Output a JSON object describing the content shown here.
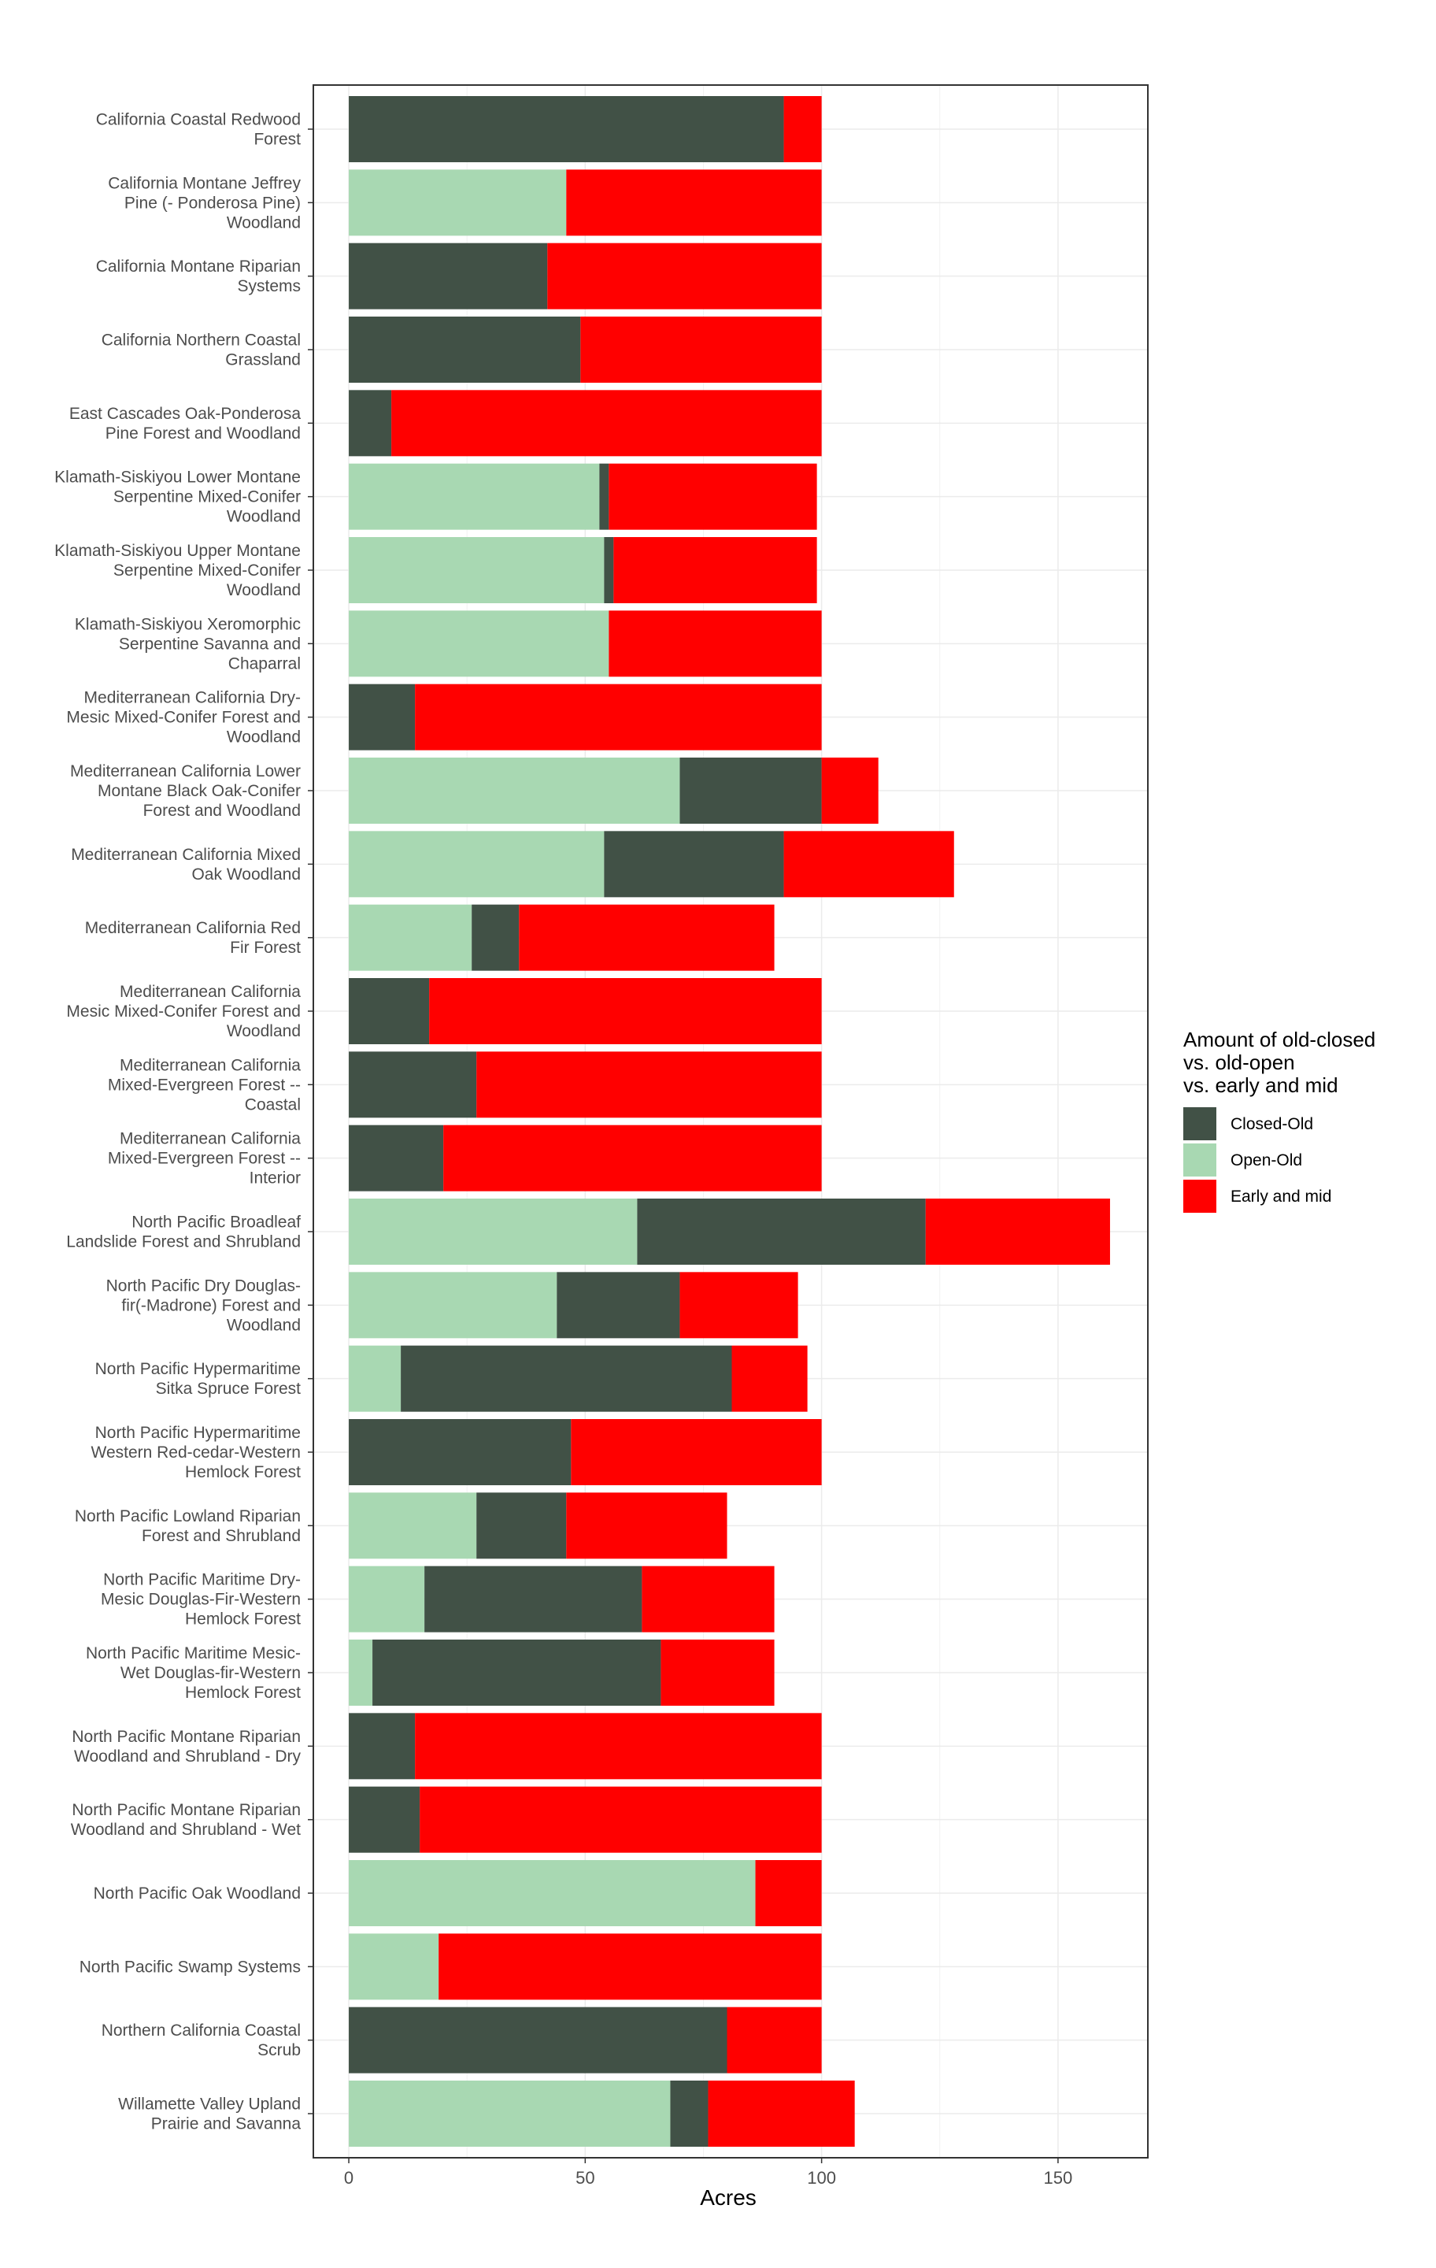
{
  "chart_data": {
    "type": "bar",
    "orientation": "horizontal",
    "stacked": true,
    "xlabel": "Acres",
    "ylabel": "",
    "xlim": [
      -7.5,
      169
    ],
    "xticks": [
      0,
      50,
      100,
      150
    ],
    "grid": true,
    "legend_position": "right",
    "legend_title": [
      "Amount of old-closed",
      "vs. old-open",
      "vs. early and mid"
    ],
    "categories": [
      [
        "California Coastal Redwood",
        "Forest"
      ],
      [
        "California Montane Jeffrey",
        "Pine (- Ponderosa Pine)",
        "Woodland"
      ],
      [
        "California Montane Riparian",
        "Systems"
      ],
      [
        "California Northern Coastal",
        "Grassland"
      ],
      [
        "East Cascades Oak-Ponderosa",
        "Pine Forest and Woodland"
      ],
      [
        "Klamath-Siskiyou Lower Montane",
        "Serpentine Mixed-Conifer",
        "Woodland"
      ],
      [
        "Klamath-Siskiyou Upper Montane",
        "Serpentine Mixed-Conifer",
        "Woodland"
      ],
      [
        "Klamath-Siskiyou Xeromorphic",
        "Serpentine Savanna and",
        "Chaparral"
      ],
      [
        "Mediterranean California Dry-",
        "Mesic Mixed-Conifer Forest and",
        "Woodland"
      ],
      [
        "Mediterranean California Lower",
        "Montane Black Oak-Conifer",
        "Forest and Woodland"
      ],
      [
        "Mediterranean California Mixed",
        "Oak Woodland"
      ],
      [
        "Mediterranean California Red",
        "Fir Forest"
      ],
      [
        "Mediterranean California",
        "Mesic Mixed-Conifer Forest and",
        "Woodland"
      ],
      [
        "Mediterranean California",
        "Mixed-Evergreen Forest --",
        "Coastal"
      ],
      [
        "Mediterranean California",
        "Mixed-Evergreen Forest --",
        "Interior"
      ],
      [
        "North Pacific Broadleaf",
        "Landslide Forest and Shrubland"
      ],
      [
        "North Pacific Dry Douglas-",
        "fir(-Madrone) Forest and",
        "Woodland"
      ],
      [
        "North Pacific Hypermaritime",
        "Sitka Spruce Forest"
      ],
      [
        "North Pacific Hypermaritime",
        "Western Red-cedar-Western",
        "Hemlock Forest"
      ],
      [
        "North Pacific Lowland Riparian",
        "Forest and Shrubland"
      ],
      [
        "North Pacific Maritime Dry-",
        "Mesic Douglas-Fir-Western",
        "Hemlock Forest"
      ],
      [
        "North Pacific Maritime Mesic-",
        "Wet Douglas-fir-Western",
        "Hemlock Forest"
      ],
      [
        "North Pacific Montane Riparian",
        "Woodland and Shrubland - Dry"
      ],
      [
        "North Pacific Montane Riparian",
        "Woodland and Shrubland - Wet"
      ],
      [
        "North Pacific Oak Woodland"
      ],
      [
        "North Pacific Swamp Systems"
      ],
      [
        "Northern California Coastal",
        "Scrub"
      ],
      [
        "Willamette Valley Upland",
        "Prairie and Savanna"
      ]
    ],
    "series": [
      {
        "name": "Open-Old",
        "color": "#a8d8b2",
        "values": [
          0,
          46,
          0,
          0,
          0,
          53,
          54,
          55,
          0,
          70,
          54,
          26,
          0,
          0,
          0,
          61,
          44,
          11,
          0,
          27,
          16,
          5,
          0,
          0,
          86,
          19,
          0,
          68
        ]
      },
      {
        "name": "Closed-Old",
        "color": "#415146",
        "values": [
          92,
          0,
          42,
          49,
          9,
          2,
          2,
          0,
          14,
          30,
          38,
          10,
          17,
          27,
          20,
          61,
          26,
          70,
          47,
          19,
          46,
          61,
          14,
          15,
          0,
          0,
          80,
          8
        ]
      },
      {
        "name": "Early and mid",
        "color": "#ff0000",
        "values": [
          8,
          54,
          58,
          51,
          91,
          44,
          43,
          45,
          86,
          12,
          36,
          54,
          83,
          73,
          80,
          39,
          25,
          16,
          53,
          34,
          28,
          24,
          86,
          85,
          14,
          81,
          20,
          31
        ]
      }
    ],
    "legend_order": [
      "Closed-Old",
      "Open-Old",
      "Early and mid"
    ]
  }
}
